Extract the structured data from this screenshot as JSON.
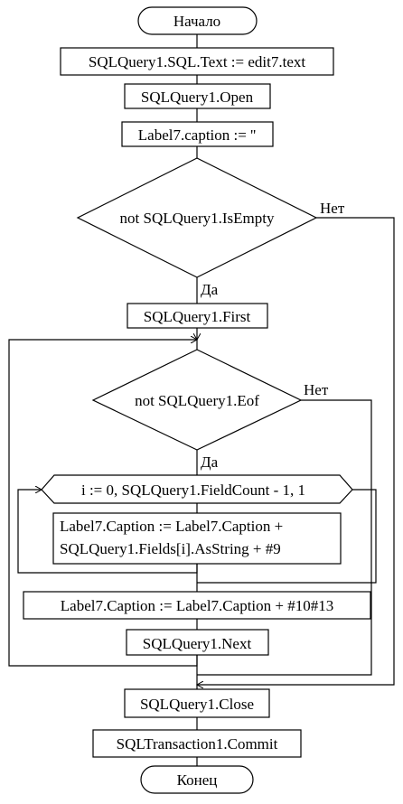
{
  "flowchart": {
    "start": "Начало",
    "set_sql": "SQLQuery1.SQL.Text := edit7.text",
    "open": "SQLQuery1.Open",
    "clear_label": "Label7.caption := ''",
    "cond_not_empty": "not SQLQuery1.IsEmpty",
    "first": "SQLQuery1.First",
    "cond_not_eof": "not SQLQuery1.Eof",
    "for_loop": "i := 0, SQLQuery1.FieldCount - 1, 1",
    "append_field_line1": "Label7.Caption := Label7.Caption +",
    "append_field_line2": "SQLQuery1.Fields[i].AsString + #9",
    "append_newline": "Label7.Caption := Label7.Caption + #10#13",
    "next": "SQLQuery1.Next",
    "close": "SQLQuery1.Close",
    "commit": "SQLTransaction1.Commit",
    "end": "Конец",
    "yes_1": "Да",
    "no_1": "Нет",
    "yes_2": "Да",
    "no_2": "Нет"
  }
}
